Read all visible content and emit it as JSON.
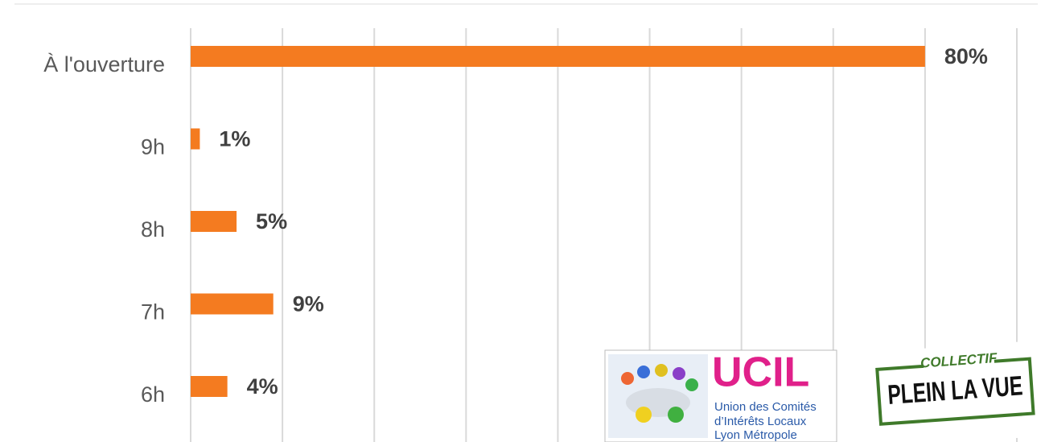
{
  "chart_data": {
    "type": "barh",
    "categories": [
      "À l'ouverture",
      "9h",
      "8h",
      "7h",
      "6h"
    ],
    "values": [
      80,
      1,
      5,
      9,
      4
    ],
    "value_labels": [
      "80%",
      "1%",
      "5%",
      "9%",
      "4%"
    ],
    "color": "#f47b20",
    "xlim": [
      0,
      90
    ],
    "xticks": [
      0,
      10,
      20,
      30,
      40,
      50,
      60,
      70,
      80,
      90
    ],
    "grid": true,
    "annotations": [
      "UCIL",
      "Union des Comités",
      "d’Intérêts Locaux",
      "Lyon Métropole",
      "COLLECTIF",
      "PLEIN LA VUE"
    ]
  }
}
